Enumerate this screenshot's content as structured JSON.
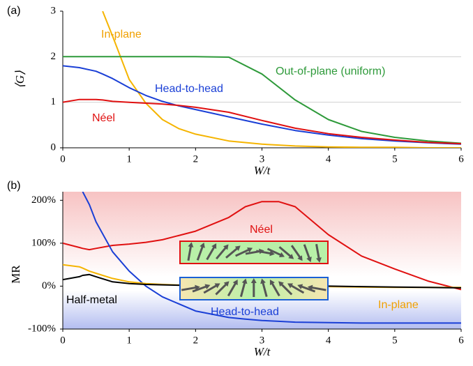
{
  "chart_data": [
    {
      "type": "line",
      "panel_label": "(a)",
      "x_label": "W/t",
      "y_label": "⟨G⟩",
      "x": [
        0,
        0.25,
        0.5,
        0.6,
        0.75,
        1,
        1.25,
        1.5,
        1.75,
        2,
        2.5,
        3,
        3.5,
        4,
        4.5,
        5,
        5.5,
        6
      ],
      "series": [
        {
          "name": "In-plane",
          "color": "#f5b400",
          "values": [
            null,
            null,
            null,
            3,
            2.45,
            1.5,
            0.98,
            0.62,
            0.42,
            0.3,
            0.15,
            0.08,
            0.04,
            0.02,
            0.01,
            0.01,
            0,
            0
          ]
        },
        {
          "name": "Out-of-plane (uniform)",
          "color": "#2e9a3a",
          "values": [
            2,
            2,
            2,
            2,
            2,
            2,
            2,
            2,
            2,
            2,
            1.99,
            1.62,
            1.05,
            0.62,
            0.36,
            0.23,
            0.15,
            0.1
          ]
        },
        {
          "name": "Head-to-head",
          "color": "#1a3fd6",
          "values": [
            1.8,
            1.76,
            1.68,
            1.62,
            1.52,
            1.32,
            1.15,
            1.02,
            0.92,
            0.84,
            0.68,
            0.52,
            0.38,
            0.28,
            0.2,
            0.15,
            0.11,
            0.08
          ]
        },
        {
          "name": "Néel",
          "color": "#e01010",
          "values": [
            1.0,
            1.06,
            1.06,
            1.05,
            1.02,
            1.0,
            0.98,
            0.96,
            0.93,
            0.89,
            0.78,
            0.6,
            0.43,
            0.31,
            0.23,
            0.17,
            0.12,
            0.09
          ]
        }
      ],
      "xlim": [
        0,
        6
      ],
      "xticks": [
        0,
        1,
        2,
        3,
        4,
        5,
        6
      ],
      "ylim": [
        0,
        3
      ],
      "yticks": [
        0,
        1,
        2,
        3
      ],
      "grid": true
    },
    {
      "type": "line",
      "panel_label": "(b)",
      "x_label": "W/t",
      "y_label": "MR",
      "x": [
        0,
        0.25,
        0.3,
        0.4,
        0.5,
        0.75,
        1,
        1.25,
        1.5,
        2,
        2.5,
        2.75,
        3,
        3.25,
        3.5,
        4,
        4.5,
        5,
        5.5,
        6
      ],
      "series": [
        {
          "name": "Néel",
          "color": "#e01010",
          "values": [
            100,
            90,
            88,
            85,
            88,
            95,
            98,
            102,
            108,
            128,
            160,
            185,
            197,
            197,
            185,
            120,
            70,
            40,
            12,
            -8
          ]
        },
        {
          "name": "Head-to-head",
          "color": "#1a3fd6",
          "values": [
            null,
            null,
            220,
            190,
            150,
            80,
            35,
            0,
            -25,
            -58,
            -73,
            -77,
            -80,
            -82,
            -84,
            -85,
            -86,
            -86,
            -86,
            -86
          ]
        },
        {
          "name": "In-plane",
          "color": "#f5b400",
          "values": [
            50,
            45,
            42,
            35,
            30,
            18,
            10,
            6,
            4,
            1,
            0,
            0,
            0,
            0,
            -1,
            -1,
            -2,
            -3,
            -3,
            -3
          ]
        },
        {
          "name": "Half-metal",
          "color": "#000000",
          "values": [
            15,
            22,
            25,
            27,
            22,
            10,
            6,
            4,
            3,
            1,
            0,
            0,
            0,
            0,
            0,
            0,
            -1,
            -2,
            -3,
            -4
          ]
        }
      ],
      "xlim": [
        0,
        6
      ],
      "xticks": [
        0,
        1,
        2,
        3,
        4,
        5,
        6
      ],
      "ylim": [
        -100,
        220
      ],
      "yticks": [
        {
          "value": -100,
          "label": "-100%"
        },
        {
          "value": 0,
          "label": "0%"
        },
        {
          "value": 100,
          "label": "100%"
        },
        {
          "value": 200,
          "label": "200%"
        }
      ],
      "grid": false
    }
  ]
}
